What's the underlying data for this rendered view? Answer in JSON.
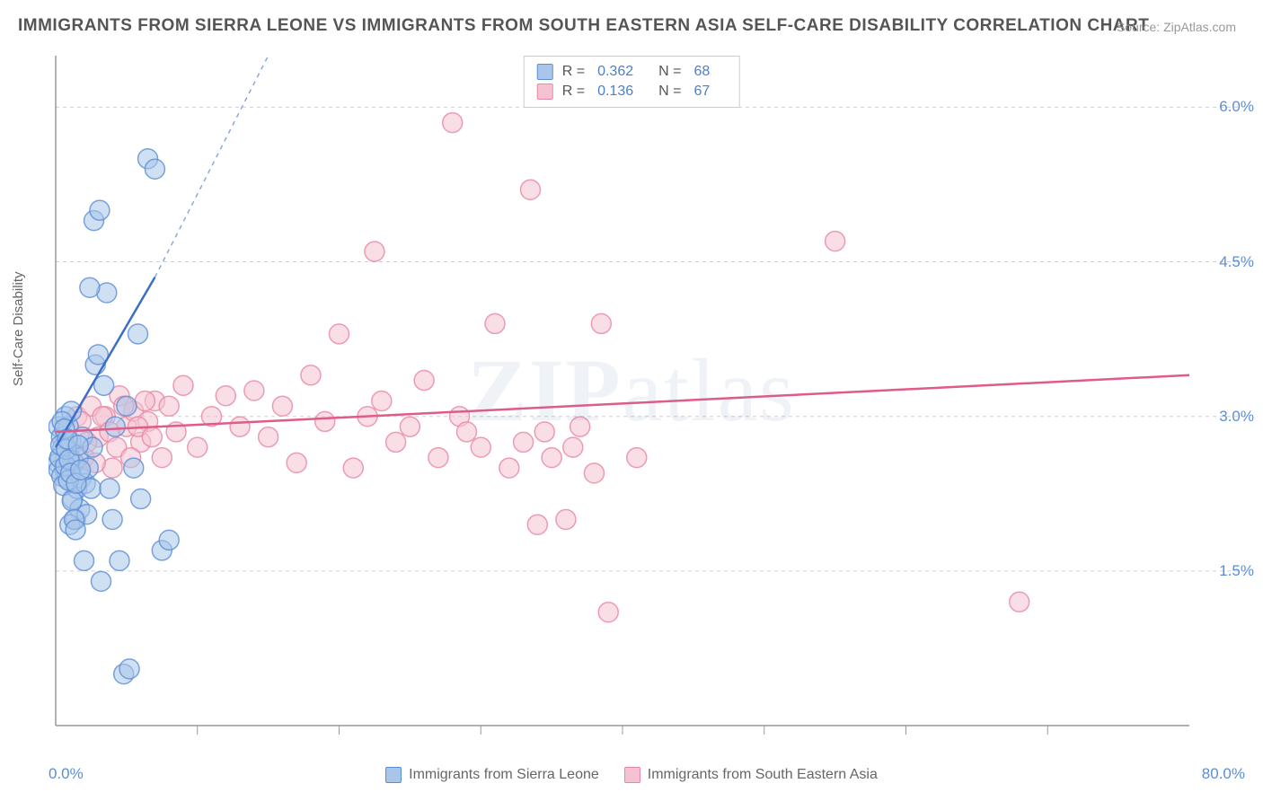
{
  "title": "IMMIGRANTS FROM SIERRA LEONE VS IMMIGRANTS FROM SOUTH EASTERN ASIA SELF-CARE DISABILITY CORRELATION CHART",
  "source": "Source: ZipAtlas.com",
  "watermark": "ZIPatlas",
  "ylabel": "Self-Care Disability",
  "xlim": [
    0,
    80
  ],
  "ylim": [
    0,
    6.5
  ],
  "yticks": [
    1.5,
    3.0,
    4.5,
    6.0
  ],
  "ytick_labels": [
    "1.5%",
    "3.0%",
    "4.5%",
    "6.0%"
  ],
  "xticks": [
    0,
    10,
    20,
    30,
    40,
    50,
    60,
    70,
    80
  ],
  "x_left_label": "0.0%",
  "x_right_label": "80.0%",
  "series": [
    {
      "id": "sierra_leone",
      "label": "Immigrants from Sierra Leone",
      "fill": "#a9c6ea",
      "stroke": "#5b8dd6",
      "marker_radius": 11,
      "marker_opacity": 0.55,
      "R": "0.362",
      "N": "68",
      "trend": {
        "x1": 0,
        "y1": 2.7,
        "x2": 7,
        "y2": 4.35,
        "extend_x2": 15,
        "extend_y2": 6.5,
        "color": "#3b6fc7",
        "width": 2.5
      },
      "points": [
        [
          0.2,
          2.9
        ],
        [
          0.3,
          2.6
        ],
        [
          0.4,
          2.8
        ],
        [
          0.5,
          2.7
        ],
        [
          0.6,
          2.5
        ],
        [
          0.7,
          3.0
        ],
        [
          0.8,
          2.4
        ],
        [
          0.9,
          2.9
        ],
        [
          1.0,
          2.6
        ],
        [
          1.1,
          2.75
        ],
        [
          1.2,
          2.2
        ],
        [
          1.3,
          2.55
        ],
        [
          1.4,
          2.0
        ],
        [
          1.5,
          2.3
        ],
        [
          1.6,
          2.6
        ],
        [
          1.7,
          2.1
        ],
        [
          1.8,
          2.4
        ],
        [
          1.9,
          2.8
        ],
        [
          2.0,
          1.6
        ],
        [
          2.1,
          2.35
        ],
        [
          2.2,
          2.05
        ],
        [
          2.3,
          2.5
        ],
        [
          2.5,
          2.3
        ],
        [
          2.6,
          2.7
        ],
        [
          2.8,
          3.5
        ],
        [
          3.0,
          3.6
        ],
        [
          3.2,
          1.4
        ],
        [
          3.4,
          3.3
        ],
        [
          3.6,
          4.2
        ],
        [
          3.8,
          2.3
        ],
        [
          4.0,
          2.0
        ],
        [
          4.2,
          2.9
        ],
        [
          4.5,
          1.6
        ],
        [
          4.8,
          0.5
        ],
        [
          5.0,
          3.1
        ],
        [
          5.2,
          0.55
        ],
        [
          5.5,
          2.5
        ],
        [
          5.8,
          3.8
        ],
        [
          6.0,
          2.2
        ],
        [
          6.5,
          5.5
        ],
        [
          7.0,
          5.4
        ],
        [
          7.5,
          1.7
        ],
        [
          8.0,
          1.8
        ],
        [
          2.4,
          4.25
        ],
        [
          2.7,
          4.9
        ],
        [
          3.1,
          5.0
        ],
        [
          1.0,
          1.95
        ],
        [
          1.1,
          3.05
        ],
        [
          0.15,
          2.55
        ],
        [
          0.22,
          2.48
        ],
        [
          0.28,
          2.6
        ],
        [
          0.35,
          2.72
        ],
        [
          0.42,
          2.42
        ],
        [
          0.45,
          2.95
        ],
        [
          0.55,
          2.33
        ],
        [
          0.62,
          2.88
        ],
        [
          0.68,
          2.52
        ],
        [
          0.75,
          2.68
        ],
        [
          0.82,
          2.78
        ],
        [
          0.9,
          2.38
        ],
        [
          0.95,
          2.58
        ],
        [
          1.05,
          2.45
        ],
        [
          1.15,
          2.18
        ],
        [
          1.3,
          2.0
        ],
        [
          1.4,
          1.9
        ],
        [
          1.45,
          2.35
        ],
        [
          1.6,
          2.72
        ],
        [
          1.75,
          2.48
        ]
      ]
    },
    {
      "id": "se_asia",
      "label": "Immigrants from South Eastern Asia",
      "fill": "#f4c2d1",
      "stroke": "#e986a5",
      "marker_radius": 11,
      "marker_opacity": 0.55,
      "R": "0.136",
      "N": "67",
      "trend": {
        "x1": 0,
        "y1": 2.85,
        "x2": 80,
        "y2": 3.4,
        "color": "#e05b87",
        "width": 2.5
      },
      "points": [
        [
          1.5,
          3.0
        ],
        [
          2.0,
          2.6
        ],
        [
          2.5,
          3.1
        ],
        [
          3.0,
          2.8
        ],
        [
          3.5,
          3.0
        ],
        [
          4.0,
          2.5
        ],
        [
          4.5,
          3.2
        ],
        [
          5.0,
          2.9
        ],
        [
          5.5,
          3.05
        ],
        [
          6.0,
          2.75
        ],
        [
          6.5,
          2.95
        ],
        [
          7.0,
          3.15
        ],
        [
          7.5,
          2.6
        ],
        [
          8.0,
          3.1
        ],
        [
          8.5,
          2.85
        ],
        [
          9.0,
          3.3
        ],
        [
          10.0,
          2.7
        ],
        [
          11.0,
          3.0
        ],
        [
          12.0,
          3.2
        ],
        [
          13.0,
          2.9
        ],
        [
          14.0,
          3.25
        ],
        [
          15.0,
          2.8
        ],
        [
          16.0,
          3.1
        ],
        [
          17.0,
          2.55
        ],
        [
          18.0,
          3.4
        ],
        [
          19.0,
          2.95
        ],
        [
          20.0,
          3.8
        ],
        [
          21.0,
          2.5
        ],
        [
          22.0,
          3.0
        ],
        [
          22.5,
          4.6
        ],
        [
          23.0,
          3.15
        ],
        [
          24.0,
          2.75
        ],
        [
          25.0,
          2.9
        ],
        [
          26.0,
          3.35
        ],
        [
          27.0,
          2.6
        ],
        [
          28.0,
          5.85
        ],
        [
          28.5,
          3.0
        ],
        [
          29.0,
          2.85
        ],
        [
          30.0,
          2.7
        ],
        [
          31.0,
          3.9
        ],
        [
          32.0,
          2.5
        ],
        [
          33.0,
          2.75
        ],
        [
          34.0,
          1.95
        ],
        [
          35.0,
          2.6
        ],
        [
          36.0,
          2.0
        ],
        [
          37.0,
          2.9
        ],
        [
          38.0,
          2.45
        ],
        [
          33.5,
          5.2
        ],
        [
          34.5,
          2.85
        ],
        [
          36.5,
          2.7
        ],
        [
          38.5,
          3.9
        ],
        [
          39.0,
          1.1
        ],
        [
          41.0,
          2.6
        ],
        [
          55.0,
          4.7
        ],
        [
          68.0,
          1.2
        ],
        [
          1.0,
          2.7
        ],
        [
          1.8,
          2.95
        ],
        [
          2.2,
          2.75
        ],
        [
          2.8,
          2.55
        ],
        [
          3.3,
          3.0
        ],
        [
          3.8,
          2.85
        ],
        [
          4.3,
          2.7
        ],
        [
          4.8,
          3.1
        ],
        [
          5.3,
          2.6
        ],
        [
          5.8,
          2.9
        ],
        [
          6.3,
          3.15
        ],
        [
          6.8,
          2.8
        ]
      ]
    }
  ],
  "legend_labels": {
    "R": "R =",
    "N": "N ="
  },
  "colors": {
    "grid": "#d0d0d0",
    "axis": "#999",
    "text": "#666",
    "tick": "#5b8dd6"
  },
  "background_color": "#ffffff"
}
